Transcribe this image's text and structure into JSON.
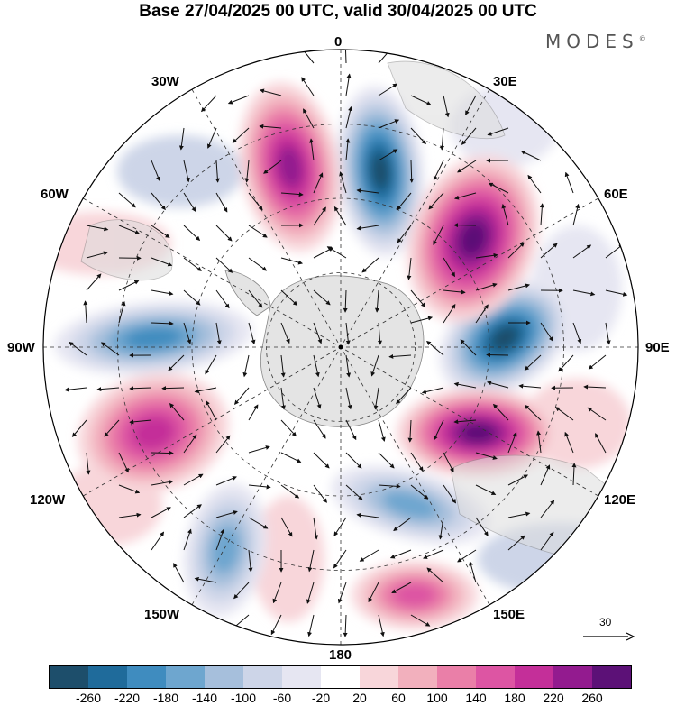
{
  "title": "Base 27/04/2025 00 UTC, valid 30/04/2025 00 UTC",
  "logo": "MODES",
  "logo_mark": "©",
  "longitude_labels": {
    "top": "0",
    "lon_30e": "30E",
    "lon_60e": "60E",
    "lon_90e": "90E",
    "lon_120e": "120E",
    "lon_150e": "150E",
    "bottom": "180",
    "lon_150w": "150W",
    "lon_120w": "120W",
    "lon_90w": "90W",
    "lon_60w": "60W",
    "lon_30w": "30W"
  },
  "vector_scale": {
    "value": "30",
    "icon": "arrow-right-icon"
  },
  "colorbar": {
    "colors": [
      "#1d4e6b",
      "#1f6b9b",
      "#3f8cbf",
      "#6ea6cf",
      "#a6bfdc",
      "#cdd5e8",
      "#e6e6f2",
      "#ffffff",
      "#f8d6da",
      "#f2b0bd",
      "#ea7fa8",
      "#dd55a3",
      "#c42f99",
      "#931b8f",
      "#5c1177"
    ],
    "ticks": [
      "-260",
      "-220",
      "-180",
      "-140",
      "-100",
      "-60",
      "-20",
      "20",
      "60",
      "100",
      "140",
      "180",
      "220",
      "260"
    ]
  },
  "anomaly_features": [
    {
      "sign": "negative",
      "level": -260,
      "sector": "15E"
    },
    {
      "sign": "negative",
      "level": -260,
      "sector": "90E"
    },
    {
      "sign": "negative",
      "level": -180,
      "sector": "90W"
    },
    {
      "sign": "negative",
      "level": -140,
      "sector": "150W"
    },
    {
      "sign": "negative",
      "level": -140,
      "sector": "150E"
    },
    {
      "sign": "positive",
      "level": 220,
      "sector": "15W"
    },
    {
      "sign": "positive",
      "level": 260,
      "sector": "60E"
    },
    {
      "sign": "positive",
      "level": 260,
      "sector": "120E"
    },
    {
      "sign": "positive",
      "level": 180,
      "sector": "120W"
    },
    {
      "sign": "positive",
      "level": 140,
      "sector": "170E"
    }
  ]
}
